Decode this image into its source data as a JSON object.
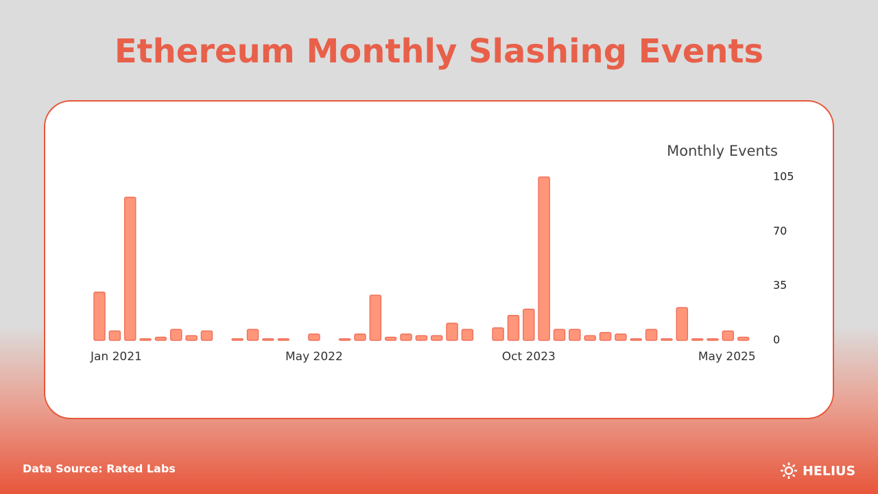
{
  "chart_data": {
    "type": "bar",
    "title": "Ethereum Monthly Slashing Events",
    "y_axis_title": "Monthly Events",
    "categories": [
      "Jan 2021",
      null,
      null,
      null,
      null,
      null,
      null,
      null,
      null,
      null,
      null,
      null,
      null,
      null,
      "May 2022",
      null,
      null,
      null,
      null,
      null,
      null,
      null,
      null,
      null,
      null,
      null,
      null,
      null,
      "Oct 2023",
      null,
      null,
      null,
      null,
      null,
      null,
      null,
      null,
      null,
      null,
      null,
      null,
      null,
      "May 2025"
    ],
    "values": [
      31,
      6,
      92,
      1,
      2,
      7,
      3,
      6,
      0,
      1,
      7,
      1,
      1,
      0,
      4,
      0,
      1,
      4,
      29,
      2,
      4,
      3,
      3,
      11,
      7,
      0,
      8,
      16,
      20,
      105,
      7,
      7,
      3,
      5,
      4,
      1,
      7,
      1,
      21,
      1,
      1,
      6,
      2
    ],
    "color": "#ff967a",
    "ylim": [
      0,
      105
    ],
    "yticks": [
      0,
      35,
      70,
      105
    ],
    "grid": false
  },
  "footer": {
    "source": "Data Source: Rated Labs",
    "brand": "HELIUS"
  }
}
